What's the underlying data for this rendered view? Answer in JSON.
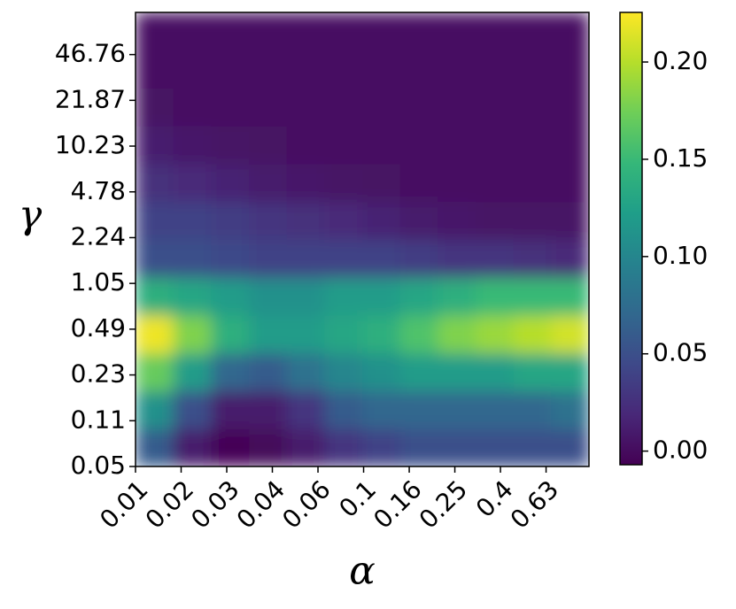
{
  "chart_data": {
    "type": "heatmap",
    "x_label": "α",
    "y_label": "γ",
    "x_scale": "log",
    "y_scale": "log",
    "colormap": "viridis",
    "x": [
      0.0121,
      0.0177,
      0.026,
      0.038,
      0.0556,
      0.0815,
      0.1194,
      0.1746,
      0.2559,
      0.375,
      0.5488,
      0.8035
    ],
    "y": [
      0.0684,
      0.1282,
      0.2404,
      0.4508,
      0.8453,
      1.585,
      2.972,
      5.572,
      10.45,
      19.59,
      36.73,
      68.87
    ],
    "values": [
      [
        0.06,
        0.01,
        -0.005,
        -0.003,
        0.01,
        0.03,
        0.04,
        0.05,
        0.05,
        0.05,
        0.05,
        0.05
      ],
      [
        0.11,
        0.05,
        0.01,
        0.01,
        0.03,
        0.06,
        0.07,
        0.07,
        0.07,
        0.07,
        0.07,
        0.08
      ],
      [
        0.17,
        0.12,
        0.07,
        0.06,
        0.08,
        0.1,
        0.11,
        0.12,
        0.12,
        0.12,
        0.13,
        0.13
      ],
      [
        0.22,
        0.18,
        0.14,
        0.12,
        0.12,
        0.13,
        0.14,
        0.16,
        0.18,
        0.19,
        0.2,
        0.21
      ],
      [
        0.14,
        0.13,
        0.12,
        0.11,
        0.11,
        0.12,
        0.12,
        0.13,
        0.14,
        0.15,
        0.15,
        0.15
      ],
      [
        0.05,
        0.05,
        0.045,
        0.04,
        0.04,
        0.04,
        0.04,
        0.035,
        0.03,
        0.03,
        0.025,
        0.02
      ],
      [
        0.04,
        0.04,
        0.035,
        0.03,
        0.025,
        0.02,
        0.015,
        0.01,
        0.008,
        0.005,
        0.005,
        0.005
      ],
      [
        0.025,
        0.02,
        0.015,
        0.01,
        0.008,
        0.005,
        0.004,
        0.003,
        0.003,
        0.003,
        0.003,
        0.003
      ],
      [
        0.012,
        0.008,
        0.005,
        0.004,
        0.003,
        0.003,
        0.003,
        0.003,
        0.003,
        0.003,
        0.003,
        0.003
      ],
      [
        0.004,
        0.003,
        0.003,
        0.003,
        0.003,
        0.003,
        0.003,
        0.003,
        0.003,
        0.003,
        0.003,
        0.003
      ],
      [
        0.003,
        0.003,
        0.003,
        0.003,
        0.003,
        0.003,
        0.003,
        0.003,
        0.003,
        0.003,
        0.003,
        0.003
      ],
      [
        0.003,
        0.003,
        0.003,
        0.003,
        0.003,
        0.003,
        0.003,
        0.003,
        0.003,
        0.003,
        0.003,
        0.003
      ]
    ],
    "xlim": [
      0.01,
      0.973
    ],
    "ylim": [
      0.05,
      94.2
    ],
    "xticks": [
      0.01,
      {
        "value": 0.01585,
        "label": "0.02"
      },
      {
        "value": 0.02512,
        "label": "0.03"
      },
      {
        "value": 0.03981,
        "label": "0.04"
      },
      {
        "value": 0.0631,
        "label": "0.06"
      },
      0.1,
      {
        "value": 0.1585,
        "label": "0.16"
      },
      {
        "value": 0.2512,
        "label": "0.25"
      },
      {
        "value": 0.3981,
        "label": "0.4"
      },
      {
        "value": 0.631,
        "label": "0.63"
      }
    ],
    "yticks": [
      0.05,
      {
        "value": 0.1069,
        "label": "0.11"
      },
      {
        "value": 0.2287,
        "label": "0.23"
      },
      {
        "value": 0.489,
        "label": "0.49"
      },
      {
        "value": 1.0457,
        "label": "1.05"
      },
      {
        "value": 2.2363,
        "label": "2.24"
      },
      {
        "value": 4.782,
        "label": "4.78"
      },
      {
        "value": 10.227,
        "label": "10.23"
      },
      21.87,
      46.76
    ],
    "colorbar_lim": [
      -0.007,
      0.2255
    ],
    "colorbar_ticks": [
      {
        "value": 0,
        "label": "0.00"
      },
      0.05,
      {
        "value": 0.1,
        "label": "0.10"
      },
      0.15,
      {
        "value": 0.2,
        "label": "0.20"
      }
    ]
  }
}
